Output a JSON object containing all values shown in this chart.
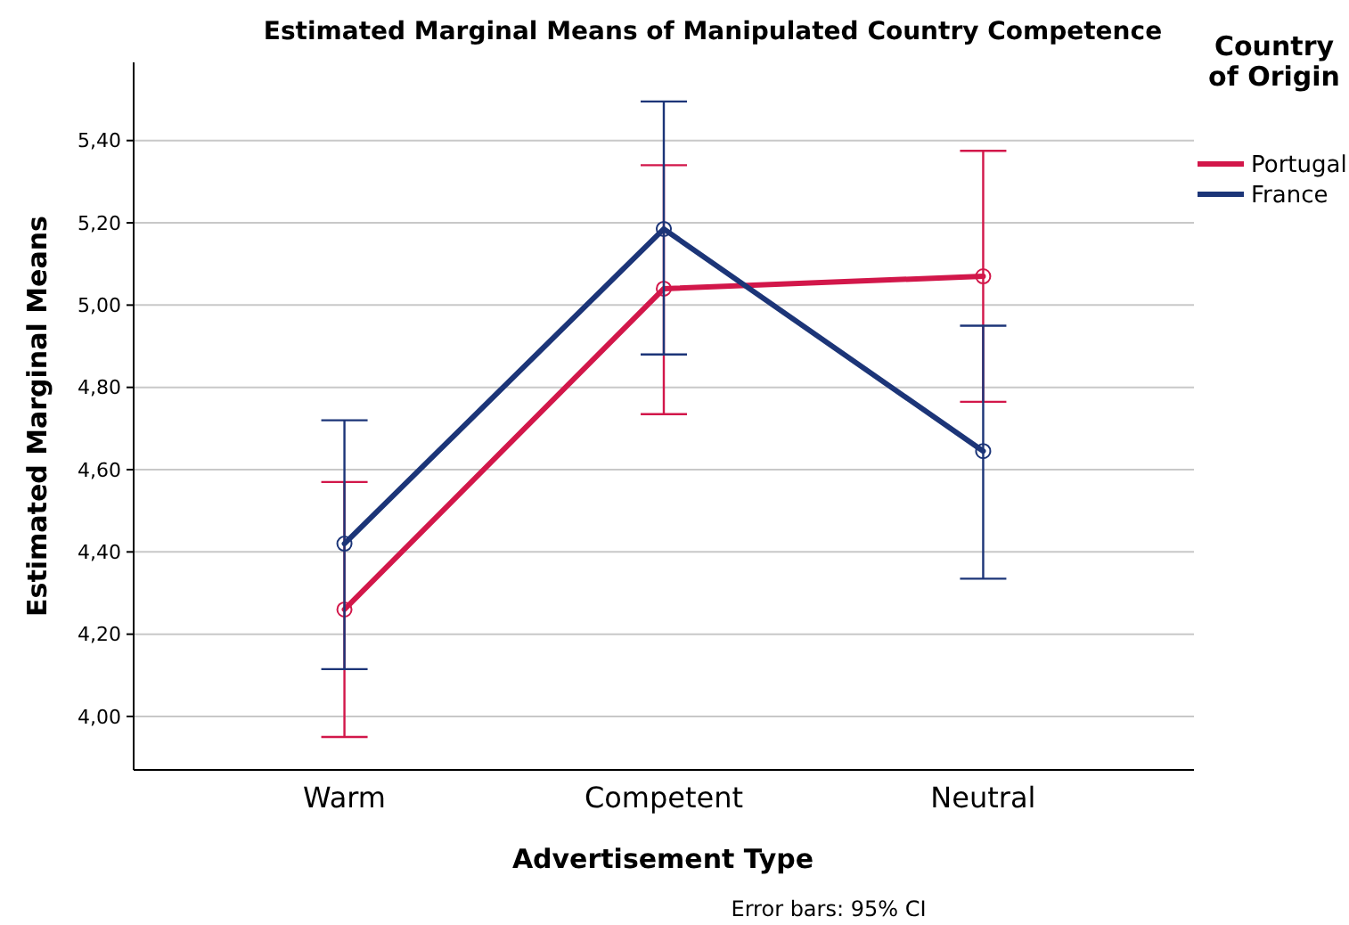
{
  "chart_data": {
    "type": "line",
    "title": "Estimated Marginal Means of Manipulated Country Competence",
    "xlabel": "Advertisement Type",
    "ylabel": "Estimated Marginal Means",
    "legend_title": "Country of Origin",
    "annotations": [
      "Error bars: 95% CI"
    ],
    "categories": [
      "Warm",
      "Competent",
      "Neutral"
    ],
    "series": [
      {
        "name": "Portugal",
        "color": "#d2174a",
        "values": [
          4.26,
          5.04,
          5.07
        ],
        "errors": [
          [
            3.95,
            4.57
          ],
          [
            4.735,
            5.34
          ],
          [
            4.765,
            5.375
          ]
        ]
      },
      {
        "name": "France",
        "color": "#1c3578",
        "values": [
          4.42,
          5.185,
          4.645
        ],
        "errors": [
          [
            4.115,
            4.72
          ],
          [
            4.88,
            5.495
          ],
          [
            4.335,
            4.95
          ]
        ]
      }
    ],
    "ylim": [
      3.87,
      5.59
    ],
    "yticks": [
      {
        "value": 4,
        "label": "4,00"
      },
      {
        "value": 4.2,
        "label": "4,20"
      },
      {
        "value": 4.4,
        "label": "4,40"
      },
      {
        "value": 4.6,
        "label": "4,60"
      },
      {
        "value": 4.8,
        "label": "4,80"
      },
      {
        "value": 5,
        "label": "5,00"
      },
      {
        "value": 5.2,
        "label": "5,20"
      },
      {
        "value": 5.4,
        "label": "5,40"
      }
    ],
    "grid": "y",
    "legend": "top right",
    "marker": "circle",
    "line_style": "solid"
  }
}
